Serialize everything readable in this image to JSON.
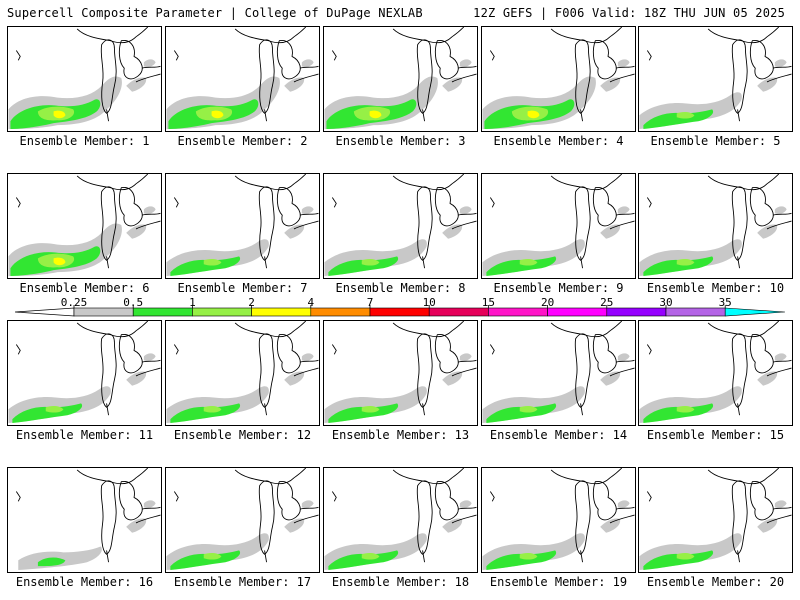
{
  "header": {
    "left": "Supercell Composite Parameter | College of DuPage NEXLAB",
    "right": "12Z GEFS | F006 Valid: 18Z THU JUN 05 2025"
  },
  "members": [
    {
      "label": "Ensemble Member: 1",
      "intensity": 3
    },
    {
      "label": "Ensemble Member: 2",
      "intensity": 3
    },
    {
      "label": "Ensemble Member: 3",
      "intensity": 3
    },
    {
      "label": "Ensemble Member: 4",
      "intensity": 3
    },
    {
      "label": "Ensemble Member: 5",
      "intensity": 2
    },
    {
      "label": "Ensemble Member: 6",
      "intensity": 3
    },
    {
      "label": "Ensemble Member: 7",
      "intensity": 2
    },
    {
      "label": "Ensemble Member: 8",
      "intensity": 2
    },
    {
      "label": "Ensemble Member: 9",
      "intensity": 2
    },
    {
      "label": "Ensemble Member: 10",
      "intensity": 2
    },
    {
      "label": "Ensemble Member: 11",
      "intensity": 2
    },
    {
      "label": "Ensemble Member: 12",
      "intensity": 2
    },
    {
      "label": "Ensemble Member: 13",
      "intensity": 2
    },
    {
      "label": "Ensemble Member: 14",
      "intensity": 2
    },
    {
      "label": "Ensemble Member: 15",
      "intensity": 2
    },
    {
      "label": "Ensemble Member: 16",
      "intensity": 1
    },
    {
      "label": "Ensemble Member: 17",
      "intensity": 2
    },
    {
      "label": "Ensemble Member: 18",
      "intensity": 2
    },
    {
      "label": "Ensemble Member: 19",
      "intensity": 2
    },
    {
      "label": "Ensemble Member: 20",
      "intensity": 2
    }
  ],
  "colorbar": {
    "ticks": [
      "0.25",
      "0.5",
      "1",
      "2",
      "4",
      "7",
      "10",
      "15",
      "20",
      "25",
      "30",
      "35"
    ],
    "colors": [
      "#c8c8c8",
      "#32e632",
      "#96f046",
      "#ffff00",
      "#ff8c00",
      "#ff0000",
      "#e6005a",
      "#ff14c8",
      "#ff00ff",
      "#9600ff",
      "#b464e6",
      "#00ffff"
    ]
  }
}
